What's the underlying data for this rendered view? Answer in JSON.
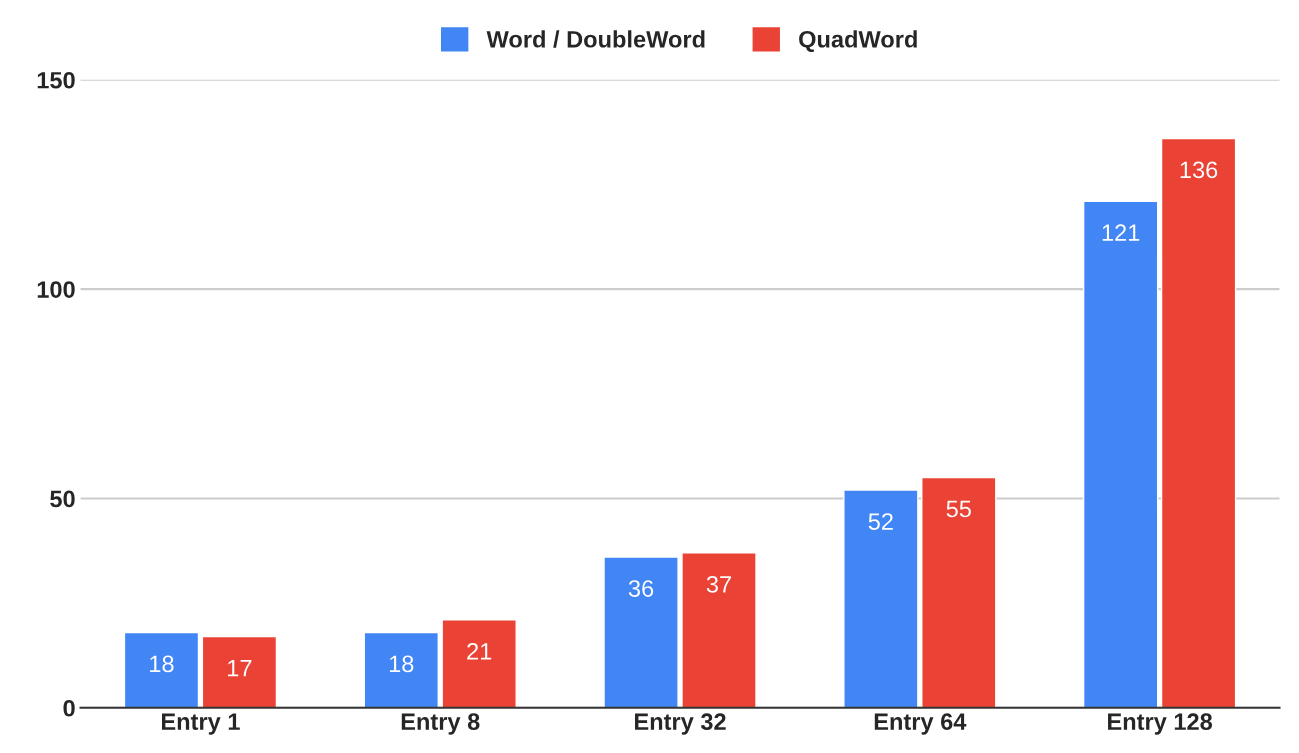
{
  "chart_data": {
    "type": "bar",
    "categories": [
      "Entry 1",
      "Entry 8",
      "Entry 32",
      "Entry 64",
      "Entry 128"
    ],
    "series": [
      {
        "name": "Word / DoubleWord",
        "color": "#4285f4",
        "values": [
          18,
          18,
          36,
          52,
          121
        ]
      },
      {
        "name": "QuadWord",
        "color": "#ea4335",
        "values": [
          17,
          21,
          37,
          55,
          136
        ]
      }
    ],
    "ylim": [
      0,
      150
    ],
    "yticks": [
      0,
      50,
      100,
      150
    ],
    "grid": "y",
    "legend": "top",
    "data_labels": true
  }
}
